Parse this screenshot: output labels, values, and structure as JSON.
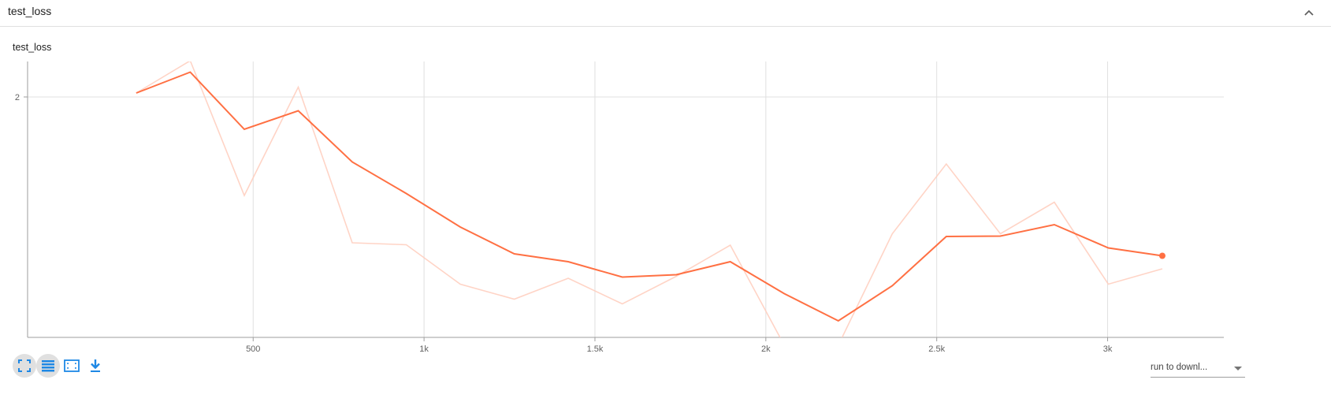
{
  "card": {
    "title": "test_loss"
  },
  "colors": {
    "series": "#ff7043",
    "raw": "#ffccbc",
    "grid": "#e0e0e0",
    "axis": "#9e9e9e",
    "icon_blue": "#1e88e5"
  },
  "toolbar": {
    "buttons": [
      "fullscreen-icon",
      "data-table-icon",
      "fit-domain-icon",
      "download-icon"
    ]
  },
  "run_selector": {
    "value": "run to downl..."
  },
  "chart_data": {
    "type": "line",
    "title": "test_loss",
    "xlabel": "",
    "ylabel": "",
    "xlim": [
      -160,
      3340
    ],
    "ylim": [
      1.39,
      2.09
    ],
    "x_ticks": [
      500,
      1000,
      1500,
      2000,
      2500,
      3000
    ],
    "x_tick_labels": [
      "500",
      "1k",
      "1.5k",
      "2k",
      "2.5k",
      "3k"
    ],
    "y_ticks": [
      2
    ],
    "y_tick_labels": [
      "2"
    ],
    "grid": true,
    "series": [
      {
        "role": "smoothed",
        "x": [
          158,
          316,
          474,
          632,
          790,
          948,
          1106,
          1264,
          1422,
          1580,
          1738,
          1896,
          2054,
          2212,
          2370,
          2528,
          2686,
          2844,
          3002,
          3160
        ],
        "y": [
          2.01,
          2.063,
          1.918,
          1.965,
          1.835,
          1.755,
          1.67,
          1.602,
          1.582,
          1.543,
          1.549,
          1.582,
          1.501,
          1.432,
          1.521,
          1.646,
          1.647,
          1.676,
          1.617,
          1.597
        ]
      },
      {
        "role": "raw",
        "x": [
          158,
          316,
          474,
          632,
          790,
          948,
          1106,
          1264,
          1422,
          1580,
          1738,
          1896,
          2054,
          2212,
          2370,
          2528,
          2686,
          2844,
          3002,
          3160
        ],
        "y": [
          2.01,
          2.092,
          1.75,
          2.025,
          1.63,
          1.625,
          1.525,
          1.487,
          1.54,
          1.475,
          1.545,
          1.624,
          1.37,
          1.37,
          1.653,
          1.83,
          1.653,
          1.733,
          1.525,
          1.564
        ]
      }
    ]
  }
}
